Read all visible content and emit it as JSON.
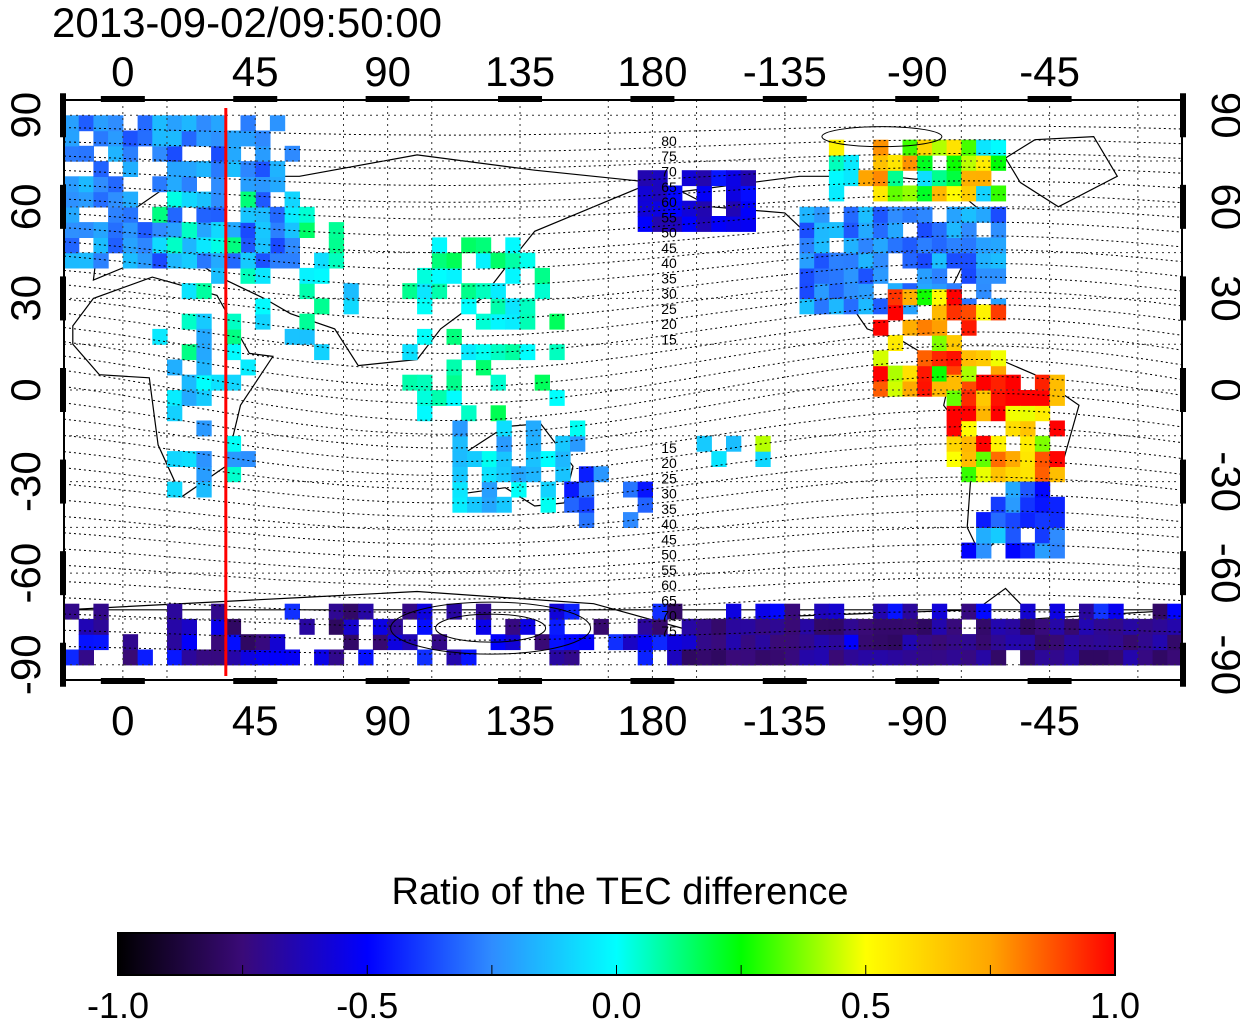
{
  "title": "2013-09-02/09:50:00",
  "map": {
    "lon_ticks_top": [
      "0",
      "45",
      "90",
      "135",
      "180",
      "-135",
      "-90",
      "-45"
    ],
    "lon_ticks_bottom": [
      "0",
      "45",
      "90",
      "135",
      "180",
      "-135",
      "-90",
      "-45"
    ],
    "lat_ticks_left": [
      "90",
      "60",
      "30",
      "0",
      "-30",
      "-60",
      "-90"
    ],
    "lat_ticks_right": [
      "90",
      "60",
      "30",
      "0",
      "-30",
      "-60",
      "-90"
    ],
    "lon_tick_values": [
      0,
      45,
      90,
      135,
      180,
      225,
      270,
      315
    ],
    "lat_tick_values": [
      90,
      60,
      30,
      0,
      -30,
      -60,
      -90
    ],
    "lon_range": [
      -20,
      360
    ],
    "lat_range": [
      -95,
      95
    ],
    "grid": true,
    "marker_line_lon": 35,
    "marker_line_color": "#ff0000",
    "contour_labels_north": [
      "80",
      "75",
      "70",
      "65",
      "60",
      "55",
      "50",
      "45",
      "40",
      "35",
      "30",
      "25",
      "20",
      "15"
    ],
    "contour_labels_south": [
      "15",
      "20",
      "25",
      "30",
      "35",
      "40",
      "45",
      "50",
      "55",
      "60",
      "65",
      "70",
      "75"
    ]
  },
  "colorbar": {
    "title": "Ratio of the TEC difference",
    "tick_labels": [
      "-1.0",
      "-0.5",
      "0.0",
      "0.5",
      "1.0"
    ],
    "min": -1.0,
    "max": 1.0,
    "colors": [
      "#000000",
      "#3a0a78",
      "#0000ff",
      "#2f8cff",
      "#00ffff",
      "#00ff00",
      "#ffff00",
      "#ffa500",
      "#ff0000"
    ]
  }
}
